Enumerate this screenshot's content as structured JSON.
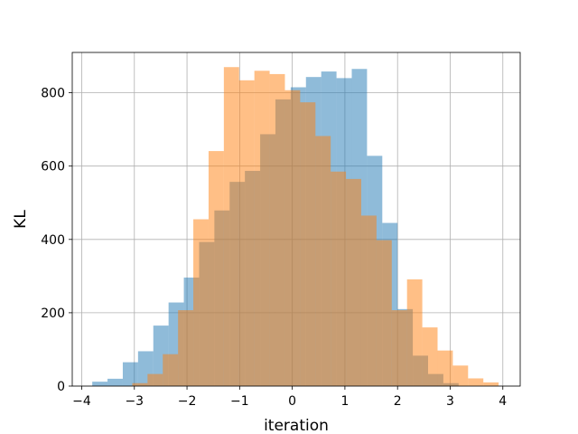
{
  "chart_data": {
    "type": "histogram",
    "title": "",
    "xlabel": "iteration",
    "ylabel": "KL",
    "xlim": [
      -4.18,
      4.33
    ],
    "ylim": [
      0,
      910
    ],
    "xticks": [
      -4,
      -3,
      -2,
      -1,
      0,
      1,
      2,
      3,
      4
    ],
    "yticks": [
      0,
      200,
      400,
      600,
      800
    ],
    "grid": true,
    "bar_opacity": 0.5,
    "series": [
      {
        "color": "#1f77b4",
        "bins": [
          {
            "x0": -3.8,
            "x1": -3.51,
            "count": 12
          },
          {
            "x0": -3.51,
            "x1": -3.22,
            "count": 20
          },
          {
            "x0": -3.22,
            "x1": -2.93,
            "count": 65
          },
          {
            "x0": -2.93,
            "x1": -2.64,
            "count": 95
          },
          {
            "x0": -2.64,
            "x1": -2.35,
            "count": 165
          },
          {
            "x0": -2.35,
            "x1": -2.06,
            "count": 228
          },
          {
            "x0": -2.06,
            "x1": -1.77,
            "count": 296
          },
          {
            "x0": -1.77,
            "x1": -1.48,
            "count": 393
          },
          {
            "x0": -1.48,
            "x1": -1.19,
            "count": 479
          },
          {
            "x0": -1.19,
            "x1": -0.9,
            "count": 557
          },
          {
            "x0": -0.9,
            "x1": -0.61,
            "count": 587
          },
          {
            "x0": -0.61,
            "x1": -0.32,
            "count": 687
          },
          {
            "x0": -0.32,
            "x1": -0.03,
            "count": 782
          },
          {
            "x0": -0.03,
            "x1": 0.26,
            "count": 815
          },
          {
            "x0": 0.26,
            "x1": 0.55,
            "count": 843
          },
          {
            "x0": 0.55,
            "x1": 0.84,
            "count": 858
          },
          {
            "x0": 0.84,
            "x1": 1.13,
            "count": 840
          },
          {
            "x0": 1.13,
            "x1": 1.42,
            "count": 865
          },
          {
            "x0": 1.42,
            "x1": 1.71,
            "count": 628
          },
          {
            "x0": 1.71,
            "x1": 2.0,
            "count": 445
          },
          {
            "x0": 2.0,
            "x1": 2.29,
            "count": 210
          },
          {
            "x0": 2.29,
            "x1": 2.58,
            "count": 83
          },
          {
            "x0": 2.58,
            "x1": 2.87,
            "count": 33
          },
          {
            "x0": 2.87,
            "x1": 3.16,
            "count": 8
          }
        ]
      },
      {
        "color": "#ff7f0e",
        "bins": [
          {
            "x0": -3.04,
            "x1": -2.75,
            "count": 8
          },
          {
            "x0": -2.75,
            "x1": -2.46,
            "count": 33
          },
          {
            "x0": -2.46,
            "x1": -2.17,
            "count": 87
          },
          {
            "x0": -2.17,
            "x1": -1.88,
            "count": 207
          },
          {
            "x0": -1.88,
            "x1": -1.59,
            "count": 455
          },
          {
            "x0": -1.59,
            "x1": -1.3,
            "count": 641
          },
          {
            "x0": -1.3,
            "x1": -1.01,
            "count": 870
          },
          {
            "x0": -1.01,
            "x1": -0.72,
            "count": 834
          },
          {
            "x0": -0.72,
            "x1": -0.43,
            "count": 860
          },
          {
            "x0": -0.43,
            "x1": -0.14,
            "count": 851
          },
          {
            "x0": -0.14,
            "x1": 0.15,
            "count": 807
          },
          {
            "x0": 0.15,
            "x1": 0.44,
            "count": 774
          },
          {
            "x0": 0.44,
            "x1": 0.73,
            "count": 682
          },
          {
            "x0": 0.73,
            "x1": 1.02,
            "count": 585
          },
          {
            "x0": 1.02,
            "x1": 1.31,
            "count": 565
          },
          {
            "x0": 1.31,
            "x1": 1.6,
            "count": 465
          },
          {
            "x0": 1.6,
            "x1": 1.89,
            "count": 398
          },
          {
            "x0": 1.89,
            "x1": 2.18,
            "count": 207
          },
          {
            "x0": 2.18,
            "x1": 2.47,
            "count": 291
          },
          {
            "x0": 2.47,
            "x1": 2.76,
            "count": 160
          },
          {
            "x0": 2.76,
            "x1": 3.05,
            "count": 97
          },
          {
            "x0": 3.05,
            "x1": 3.34,
            "count": 56
          },
          {
            "x0": 3.34,
            "x1": 3.63,
            "count": 21
          },
          {
            "x0": 3.63,
            "x1": 3.92,
            "count": 10
          }
        ]
      }
    ]
  }
}
